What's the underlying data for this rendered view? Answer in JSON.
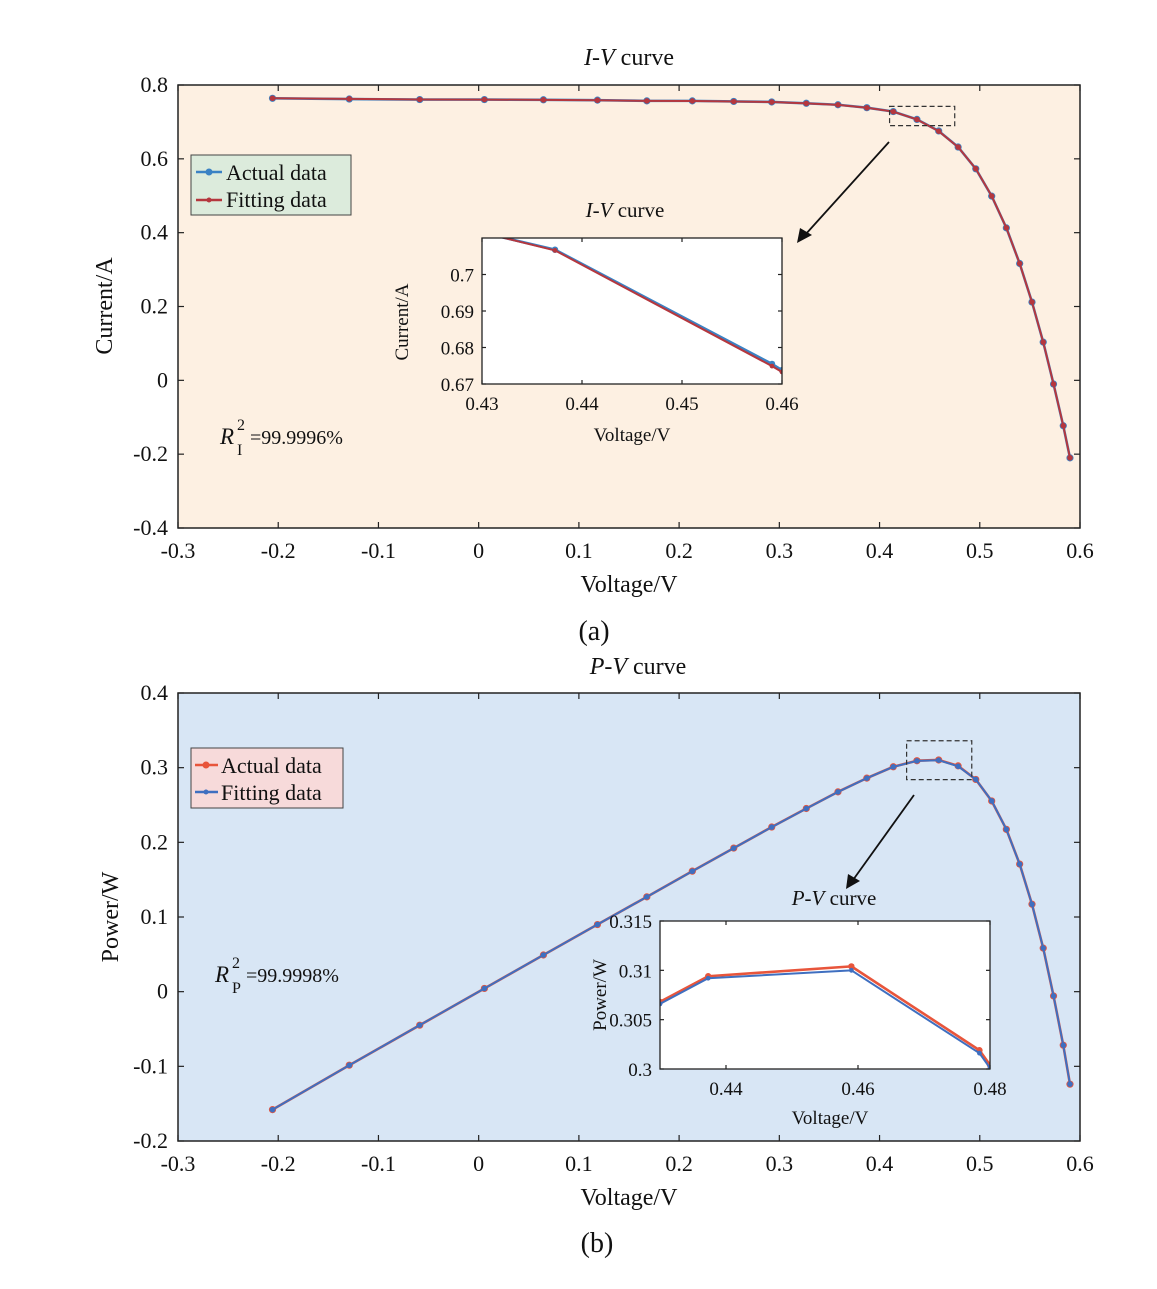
{
  "chart_data": [
    {
      "type": "line",
      "panel_label": "(a)",
      "title_italic": "I-V",
      "title_rest": " curve",
      "xlabel": "Voltage/V",
      "ylabel": "Current/A",
      "xlim": [
        -0.3,
        0.6
      ],
      "ylim": [
        -0.4,
        0.8
      ],
      "xticks": [
        "-0.3",
        "-0.2",
        "-0.1",
        "0",
        "0.1",
        "0.2",
        "0.3",
        "0.4",
        "0.5",
        "0.6"
      ],
      "yticks": [
        "-0.4",
        "-0.2",
        "0",
        "0.2",
        "0.4",
        "0.6",
        "0.8"
      ],
      "legend": [
        "Actual data",
        "Fitting data"
      ],
      "annotation": {
        "symbol": "R",
        "sub": "I",
        "sup": "2",
        "text": "=99.9996%"
      },
      "series": [
        {
          "name": "Actual data",
          "color": "#3a82c4",
          "x": [
            -0.2057,
            -0.1291,
            -0.0588,
            0.0057,
            0.0646,
            0.1185,
            0.1678,
            0.2132,
            0.2545,
            0.2924,
            0.3269,
            0.3585,
            0.3873,
            0.4137,
            0.4373,
            0.459,
            0.4784,
            0.496,
            0.5119,
            0.5265,
            0.5398,
            0.5521,
            0.5633,
            0.5736,
            0.5833,
            0.59
          ],
          "y": [
            0.764,
            0.762,
            0.7605,
            0.7605,
            0.76,
            0.759,
            0.757,
            0.757,
            0.7555,
            0.754,
            0.7505,
            0.7465,
            0.7385,
            0.728,
            0.7068,
            0.6755,
            0.632,
            0.573,
            0.499,
            0.413,
            0.3165,
            0.212,
            0.1035,
            -0.01,
            -0.123,
            -0.21
          ]
        },
        {
          "name": "Fitting data",
          "color": "#b5373e",
          "x": [
            -0.2057,
            -0.1291,
            -0.0588,
            0.0057,
            0.0646,
            0.1185,
            0.1678,
            0.2132,
            0.2545,
            0.2924,
            0.3269,
            0.3585,
            0.3873,
            0.4137,
            0.4373,
            0.459,
            0.4784,
            0.496,
            0.5119,
            0.5265,
            0.5398,
            0.5521,
            0.5633,
            0.5736,
            0.5833,
            0.59
          ],
          "y": [
            0.7641,
            0.7625,
            0.7607,
            0.7605,
            0.7598,
            0.7588,
            0.757,
            0.7568,
            0.7553,
            0.7538,
            0.7502,
            0.7463,
            0.7383,
            0.7278,
            0.7066,
            0.6749,
            0.6318,
            0.5732,
            0.4992,
            0.4131,
            0.3164,
            0.2121,
            0.1036,
            -0.0099,
            -0.1229,
            -0.2098
          ]
        }
      ],
      "zoom_box": {
        "xlim": [
          0.41,
          0.475
        ],
        "ylim": [
          0.69,
          0.742
        ]
      },
      "inset": {
        "title_italic": "I-V",
        "title_rest": " curve",
        "xlabel": "Voltage/V",
        "ylabel": "Current/A",
        "xlim": [
          0.43,
          0.46
        ],
        "ylim": [
          0.67,
          0.71
        ],
        "xticks": [
          "0.43",
          "0.44",
          "0.45",
          "0.46"
        ],
        "yticks": [
          "0.67",
          "0.68",
          "0.69",
          "0.7"
        ],
        "series": [
          {
            "name": "Actual data",
            "color": "#3a82c4",
            "x": [
              0.43,
              0.4373,
              0.459,
              0.46
            ],
            "y": [
              0.7115,
              0.7068,
              0.6755,
              0.6738
            ]
          },
          {
            "name": "Fitting data",
            "color": "#b5373e",
            "x": [
              0.43,
              0.4373,
              0.459,
              0.46
            ],
            "y": [
              0.7115,
              0.7066,
              0.6749,
              0.6733
            ]
          }
        ]
      }
    },
    {
      "type": "line",
      "panel_label": "(b)",
      "title_italic": "P-V",
      "title_rest": "  curve",
      "xlabel": "Voltage/V",
      "ylabel": "Power/W",
      "xlim": [
        -0.3,
        0.6
      ],
      "ylim": [
        -0.2,
        0.4
      ],
      "xticks": [
        "-0.3",
        "-0.2",
        "-0.1",
        "0",
        "0.1",
        "0.2",
        "0.3",
        "0.4",
        "0.5",
        "0.6"
      ],
      "yticks": [
        "-0.2",
        "-0.1",
        "0",
        "0.1",
        "0.2",
        "0.3",
        "0.4"
      ],
      "legend": [
        "Actual data",
        "Fitting data"
      ],
      "annotation": {
        "symbol": "R",
        "sub": "P",
        "sup": "2",
        "text": "=99.9998%"
      },
      "series": [
        {
          "name": "Actual data",
          "color": "#e8553b",
          "x": [
            -0.2057,
            -0.1291,
            -0.0588,
            0.0057,
            0.0646,
            0.1185,
            0.1678,
            0.2132,
            0.2545,
            0.2924,
            0.3269,
            0.3585,
            0.3873,
            0.4137,
            0.4373,
            0.459,
            0.4784,
            0.496,
            0.5119,
            0.5265,
            0.5398,
            0.5521,
            0.5633,
            0.5736,
            0.5833,
            0.59
          ],
          "y": [
            -0.158,
            -0.0985,
            -0.0449,
            0.0043,
            0.0491,
            0.0899,
            0.127,
            0.1614,
            0.1923,
            0.2205,
            0.2453,
            0.2676,
            0.286,
            0.3012,
            0.3093,
            0.3103,
            0.3024,
            0.2842,
            0.2554,
            0.2174,
            0.1709,
            0.1171,
            0.0583,
            -0.0057,
            -0.0717,
            -0.1239
          ]
        },
        {
          "name": "Fitting data",
          "color": "#3f6fc0",
          "x": [
            -0.2057,
            -0.1291,
            -0.0588,
            0.0057,
            0.0646,
            0.1185,
            0.1678,
            0.2132,
            0.2545,
            0.2924,
            0.3269,
            0.3585,
            0.3873,
            0.4137,
            0.4373,
            0.459,
            0.4784,
            0.496,
            0.5119,
            0.5265,
            0.5398,
            0.5521,
            0.5633,
            0.5736,
            0.5833,
            0.59
          ],
          "y": [
            -0.158,
            -0.0985,
            -0.0448,
            0.0043,
            0.0491,
            0.0899,
            0.127,
            0.1613,
            0.1922,
            0.2204,
            0.2452,
            0.2675,
            0.2859,
            0.3011,
            0.3091,
            0.31,
            0.3018,
            0.2843,
            0.2555,
            0.2174,
            0.1708,
            0.1171,
            0.0584,
            -0.0057,
            -0.0717,
            -0.1238
          ]
        }
      ],
      "zoom_box": {
        "xlim": [
          0.427,
          0.492
        ],
        "ylim": [
          0.284,
          0.336
        ]
      },
      "inset": {
        "title_italic": "P-V",
        "title_rest": " curve",
        "xlabel": "Voltage/V",
        "ylabel": "Power/W",
        "xlim": [
          0.43,
          0.48
        ],
        "ylim": [
          0.3,
          0.315
        ],
        "xticks": [
          "0.44",
          "0.46",
          "0.48"
        ],
        "yticks": [
          "0.3",
          "0.305",
          "0.31",
          "0.315"
        ],
        "series": [
          {
            "name": "Actual data",
            "color": "#e8553b",
            "x": [
              0.43,
              0.4373,
              0.459,
              0.4784,
              0.48
            ],
            "y": [
              0.3068,
              0.3094,
              0.3104,
              0.3019,
              0.3004
            ]
          },
          {
            "name": "Fitting data",
            "color": "#3f6fc0",
            "x": [
              0.43,
              0.4373,
              0.459,
              0.4784,
              0.48
            ],
            "y": [
              0.3066,
              0.3092,
              0.31,
              0.3016,
              0.3001
            ]
          }
        ]
      }
    }
  ]
}
